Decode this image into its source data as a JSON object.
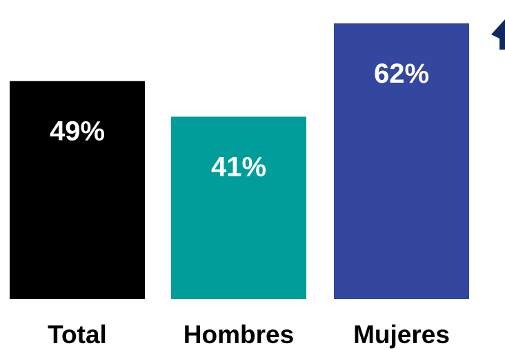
{
  "chart_data": {
    "type": "bar",
    "categories": [
      "Total",
      "Hombres",
      "Mujeres"
    ],
    "values": [
      49,
      41,
      62
    ],
    "value_labels": [
      "49%",
      "41%",
      "62%"
    ],
    "colors": [
      "#000000",
      "#009d9a",
      "#34479e"
    ],
    "ylim": [
      0,
      66
    ],
    "title": "",
    "xlabel": "",
    "ylabel": "",
    "grid": false,
    "indicator": {
      "icon": "up-arrow-icon",
      "color": "#102a5c"
    }
  }
}
